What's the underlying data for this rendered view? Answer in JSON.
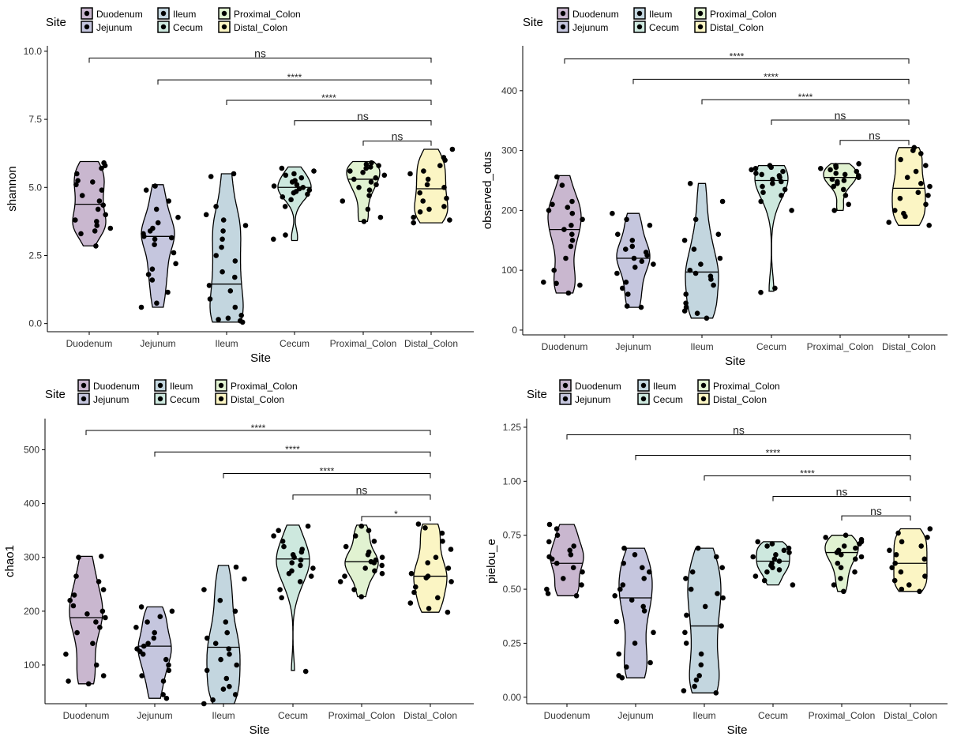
{
  "chart_data": [
    {
      "type": "violin",
      "ylabel": "shannon",
      "xlabel": "Site",
      "legend_title": "Site",
      "legend_position": "top-left",
      "categories": [
        "Duodenum",
        "Jejunum",
        "Ileum",
        "Cecum",
        "Proximal_Colon",
        "Distal_Colon"
      ],
      "legend_order": [
        "Duodenum",
        "Jejunum",
        "Ileum",
        "Cecum",
        "Proximal_Colon",
        "Distal_Colon"
      ],
      "colors": [
        "#c9b7cf",
        "#c5c6de",
        "#c3d6df",
        "#cde8de",
        "#e1f2d1",
        "#fbf5c4"
      ],
      "ylim": [
        -0.3,
        10.2
      ],
      "yticks": [
        0.0,
        2.5,
        5.0,
        7.5,
        10.0
      ],
      "ytick_labels": [
        "0.0",
        "2.5",
        "5.0",
        "7.5",
        "10.0"
      ],
      "series": [
        {
          "name": "Duodenum",
          "min": 2.85,
          "max": 5.95,
          "median": 4.38,
          "points": [
            2.85,
            3.3,
            3.4,
            3.5,
            3.6,
            3.75,
            3.8,
            4.0,
            4.2,
            4.35,
            4.5,
            4.7,
            4.9,
            5.1,
            5.2,
            5.25,
            5.5,
            5.7,
            5.8,
            5.9
          ]
        },
        {
          "name": "Jejunum",
          "min": 0.6,
          "max": 5.1,
          "median": 3.2,
          "points": [
            0.6,
            0.75,
            1.15,
            1.6,
            1.8,
            2.0,
            2.2,
            2.6,
            2.9,
            3.1,
            3.15,
            3.2,
            3.3,
            3.4,
            3.5,
            3.7,
            3.9,
            4.2,
            4.5,
            4.9,
            5.05
          ]
        },
        {
          "name": "Ileum",
          "min": 0.05,
          "max": 5.5,
          "median": 1.45,
          "points": [
            0.05,
            0.1,
            0.15,
            0.2,
            0.3,
            0.6,
            0.9,
            1.2,
            1.4,
            1.7,
            1.9,
            2.3,
            2.5,
            2.8,
            3.1,
            3.4,
            3.6,
            3.8,
            4.0,
            4.3,
            5.4,
            5.5
          ]
        },
        {
          "name": "Cecum",
          "min": 3.05,
          "max": 5.75,
          "median": 5.0,
          "points": [
            3.1,
            3.25,
            4.3,
            4.55,
            4.65,
            4.75,
            4.8,
            4.85,
            4.9,
            4.95,
            5.0,
            5.05,
            5.1,
            5.2,
            5.25,
            5.35,
            5.45,
            5.5,
            5.6,
            5.7
          ]
        },
        {
          "name": "Proximal_Colon",
          "min": 3.75,
          "max": 5.95,
          "median": 5.3,
          "points": [
            3.75,
            3.9,
            4.2,
            4.5,
            4.7,
            4.9,
            5.0,
            5.1,
            5.2,
            5.3,
            5.35,
            5.45,
            5.55,
            5.6,
            5.7,
            5.75,
            5.8,
            5.85,
            5.9
          ]
        },
        {
          "name": "Distal_Colon",
          "min": 3.7,
          "max": 6.4,
          "median": 4.95,
          "points": [
            3.7,
            3.8,
            3.9,
            4.1,
            4.2,
            4.3,
            4.5,
            4.6,
            4.8,
            5.0,
            5.1,
            5.3,
            5.5,
            5.6,
            5.8,
            6.0,
            6.1,
            6.4
          ]
        }
      ],
      "comparisons": [
        {
          "groups": [
            "Duodenum",
            "Distal_Colon"
          ],
          "y": 9.75,
          "label": "ns"
        },
        {
          "groups": [
            "Jejunum",
            "Distal_Colon"
          ],
          "y": 8.95,
          "label": "****"
        },
        {
          "groups": [
            "Ileum",
            "Distal_Colon"
          ],
          "y": 8.2,
          "label": "****"
        },
        {
          "groups": [
            "Cecum",
            "Distal_Colon"
          ],
          "y": 7.45,
          "label": "ns"
        },
        {
          "groups": [
            "Proximal_Colon",
            "Distal_Colon"
          ],
          "y": 6.7,
          "label": "ns"
        }
      ]
    },
    {
      "type": "violin",
      "ylabel": "observed_otus",
      "xlabel": "Site",
      "legend_title": "Site",
      "legend_position": "top-left",
      "categories": [
        "Duodenum",
        "Jejunum",
        "Ileum",
        "Cecum",
        "Proximal_Colon",
        "Distal_Colon"
      ],
      "legend_order": [
        "Duodenum",
        "Jejunum",
        "Ileum",
        "Cecum",
        "Proximal_Colon",
        "Distal_Colon"
      ],
      "colors": [
        "#c9b7cf",
        "#c5c6de",
        "#c3d6df",
        "#cde8de",
        "#e1f2d1",
        "#fbf5c4"
      ],
      "ylim": [
        -8,
        475
      ],
      "yticks": [
        0,
        100,
        200,
        300,
        400
      ],
      "ytick_labels": [
        "0",
        "100",
        "200",
        "300",
        "400"
      ],
      "series": [
        {
          "name": "Duodenum",
          "min": 62,
          "max": 258,
          "median": 168,
          "points": [
            62,
            75,
            78,
            80,
            100,
            120,
            140,
            150,
            160,
            168,
            175,
            185,
            195,
            200,
            205,
            210,
            215,
            242,
            256
          ]
        },
        {
          "name": "Jejunum",
          "min": 38,
          "max": 195,
          "median": 120,
          "points": [
            38,
            40,
            60,
            70,
            80,
            95,
            105,
            110,
            115,
            120,
            125,
            130,
            135,
            140,
            150,
            160,
            175,
            185,
            195
          ]
        },
        {
          "name": "Ileum",
          "min": 20,
          "max": 245,
          "median": 97,
          "points": [
            20,
            28,
            32,
            38,
            45,
            60,
            75,
            85,
            90,
            95,
            100,
            110,
            120,
            135,
            150,
            160,
            185,
            215,
            245
          ]
        },
        {
          "name": "Cecum",
          "min": 65,
          "max": 275,
          "median": 250,
          "points": [
            63,
            70,
            200,
            215,
            225,
            230,
            235,
            240,
            245,
            248,
            252,
            255,
            258,
            260,
            262,
            265,
            268,
            270,
            272,
            275
          ]
        },
        {
          "name": "Proximal_Colon",
          "min": 200,
          "max": 278,
          "median": 255,
          "points": [
            200,
            210,
            225,
            235,
            240,
            245,
            248,
            250,
            252,
            255,
            258,
            260,
            262,
            265,
            268,
            270,
            272,
            275,
            278
          ]
        },
        {
          "name": "Distal_Colon",
          "min": 175,
          "max": 305,
          "median": 237,
          "points": [
            175,
            180,
            190,
            195,
            200,
            210,
            220,
            225,
            230,
            240,
            245,
            255,
            265,
            275,
            285,
            295,
            300,
            305
          ]
        }
      ],
      "comparisons": [
        {
          "groups": [
            "Duodenum",
            "Distal_Colon"
          ],
          "y": 453,
          "label": "****"
        },
        {
          "groups": [
            "Jejunum",
            "Distal_Colon"
          ],
          "y": 419,
          "label": "****"
        },
        {
          "groups": [
            "Ileum",
            "Distal_Colon"
          ],
          "y": 385,
          "label": "****"
        },
        {
          "groups": [
            "Cecum",
            "Distal_Colon"
          ],
          "y": 351,
          "label": "ns"
        },
        {
          "groups": [
            "Proximal_Colon",
            "Distal_Colon"
          ],
          "y": 317,
          "label": "ns"
        }
      ]
    },
    {
      "type": "violin",
      "ylabel": "chao1",
      "xlabel": "Site",
      "legend_title": "Site",
      "legend_position": "top-left",
      "categories": [
        "Duodenum",
        "Jejunum",
        "Ileum",
        "Cecum",
        "Proximal_Colon",
        "Distal_Colon"
      ],
      "legend_order": [
        "Duodenum",
        "Jejunum",
        "Ileum",
        "Cecum",
        "Proximal_Colon",
        "Distal_Colon"
      ],
      "colors": [
        "#c9b7cf",
        "#c5c6de",
        "#c3d6df",
        "#cde8de",
        "#e1f2d1",
        "#fbf5c4"
      ],
      "ylim": [
        28,
        558
      ],
      "yticks": [
        100,
        200,
        300,
        400,
        500
      ],
      "ytick_labels": [
        "100",
        "200",
        "300",
        "400",
        "500"
      ],
      "series": [
        {
          "name": "Duodenum",
          "min": 65,
          "max": 302,
          "median": 188,
          "points": [
            65,
            70,
            80,
            100,
            120,
            140,
            160,
            170,
            180,
            188,
            195,
            200,
            210,
            220,
            230,
            240,
            255,
            265,
            300,
            302
          ]
        },
        {
          "name": "Jejunum",
          "min": 38,
          "max": 208,
          "median": 135,
          "points": [
            38,
            45,
            70,
            80,
            90,
            100,
            110,
            120,
            125,
            130,
            135,
            140,
            150,
            160,
            170,
            180,
            190,
            200,
            208
          ]
        },
        {
          "name": "Ileum",
          "min": 28,
          "max": 285,
          "median": 133,
          "points": [
            28,
            35,
            45,
            55,
            60,
            75,
            90,
            100,
            110,
            120,
            130,
            140,
            150,
            160,
            180,
            200,
            220,
            240,
            260,
            282
          ]
        },
        {
          "name": "Cecum",
          "min": 90,
          "max": 360,
          "median": 297,
          "points": [
            88,
            225,
            240,
            255,
            265,
            270,
            275,
            280,
            285,
            290,
            295,
            300,
            305,
            310,
            315,
            320,
            330,
            340,
            350,
            358
          ]
        },
        {
          "name": "Proximal_Colon",
          "min": 227,
          "max": 360,
          "median": 292,
          "points": [
            227,
            240,
            255,
            265,
            270,
            275,
            280,
            285,
            290,
            292,
            295,
            300,
            305,
            310,
            320,
            330,
            340,
            350,
            358
          ]
        },
        {
          "name": "Distal_Colon",
          "min": 198,
          "max": 362,
          "median": 265,
          "points": [
            198,
            205,
            215,
            225,
            235,
            245,
            255,
            262,
            265,
            270,
            280,
            290,
            300,
            315,
            330,
            345,
            355,
            362
          ]
        }
      ],
      "comparisons": [
        {
          "groups": [
            "Duodenum",
            "Distal_Colon"
          ],
          "y": 536,
          "label": "****"
        },
        {
          "groups": [
            "Jejunum",
            "Distal_Colon"
          ],
          "y": 496,
          "label": "****"
        },
        {
          "groups": [
            "Ileum",
            "Distal_Colon"
          ],
          "y": 456,
          "label": "****"
        },
        {
          "groups": [
            "Cecum",
            "Distal_Colon"
          ],
          "y": 416,
          "label": "ns"
        },
        {
          "groups": [
            "Proximal_Colon",
            "Distal_Colon"
          ],
          "y": 376,
          "label": "*"
        }
      ]
    },
    {
      "type": "violin",
      "ylabel": "pielou_e",
      "xlabel": "Site",
      "legend_title": "Site",
      "legend_position": "top-left",
      "categories": [
        "Duodenum",
        "Jejunum",
        "Ileum",
        "Cecum",
        "Proximal_Colon",
        "Distal_Colon"
      ],
      "legend_order": [
        "Duodenum",
        "Jejunum",
        "Ileum",
        "Cecum",
        "Proximal_Colon",
        "Distal_Colon"
      ],
      "colors": [
        "#c9b7cf",
        "#c5c6de",
        "#c3d6df",
        "#cde8de",
        "#e1f2d1",
        "#fbf5c4"
      ],
      "ylim": [
        -0.03,
        1.29
      ],
      "yticks": [
        0.0,
        0.25,
        0.5,
        0.75,
        1.0,
        1.25
      ],
      "ytick_labels": [
        "0.00",
        "0.25",
        "0.50",
        "0.75",
        "1.00",
        "1.25"
      ],
      "series": [
        {
          "name": "Duodenum",
          "min": 0.47,
          "max": 0.8,
          "median": 0.62,
          "points": [
            0.47,
            0.48,
            0.5,
            0.52,
            0.55,
            0.58,
            0.6,
            0.62,
            0.64,
            0.65,
            0.66,
            0.68,
            0.7,
            0.72,
            0.75,
            0.78,
            0.8
          ]
        },
        {
          "name": "Jejunum",
          "min": 0.09,
          "max": 0.69,
          "median": 0.46,
          "points": [
            0.09,
            0.1,
            0.14,
            0.16,
            0.2,
            0.25,
            0.3,
            0.35,
            0.4,
            0.42,
            0.45,
            0.47,
            0.5,
            0.52,
            0.55,
            0.58,
            0.6,
            0.62,
            0.66,
            0.69
          ]
        },
        {
          "name": "Ileum",
          "min": 0.02,
          "max": 0.69,
          "median": 0.33,
          "points": [
            0.02,
            0.03,
            0.05,
            0.08,
            0.1,
            0.15,
            0.2,
            0.25,
            0.3,
            0.33,
            0.38,
            0.42,
            0.46,
            0.48,
            0.5,
            0.55,
            0.58,
            0.6,
            0.65,
            0.69
          ]
        },
        {
          "name": "Cecum",
          "min": 0.52,
          "max": 0.72,
          "median": 0.63,
          "points": [
            0.52,
            0.54,
            0.56,
            0.58,
            0.59,
            0.6,
            0.61,
            0.62,
            0.63,
            0.64,
            0.65,
            0.66,
            0.67,
            0.68,
            0.69,
            0.7,
            0.71,
            0.72
          ]
        },
        {
          "name": "Proximal_Colon",
          "min": 0.49,
          "max": 0.75,
          "median": 0.67,
          "points": [
            0.49,
            0.52,
            0.55,
            0.58,
            0.6,
            0.62,
            0.64,
            0.65,
            0.66,
            0.67,
            0.68,
            0.69,
            0.7,
            0.71,
            0.72,
            0.73,
            0.74,
            0.75
          ]
        },
        {
          "name": "Distal_Colon",
          "min": 0.49,
          "max": 0.78,
          "median": 0.62,
          "points": [
            0.49,
            0.5,
            0.52,
            0.54,
            0.56,
            0.58,
            0.6,
            0.62,
            0.64,
            0.66,
            0.68,
            0.7,
            0.72,
            0.74,
            0.76,
            0.78
          ]
        }
      ],
      "comparisons": [
        {
          "groups": [
            "Duodenum",
            "Distal_Colon"
          ],
          "y": 1.215,
          "label": "ns"
        },
        {
          "groups": [
            "Jejunum",
            "Distal_Colon"
          ],
          "y": 1.12,
          "label": "****"
        },
        {
          "groups": [
            "Ileum",
            "Distal_Colon"
          ],
          "y": 1.025,
          "label": "****"
        },
        {
          "groups": [
            "Cecum",
            "Distal_Colon"
          ],
          "y": 0.93,
          "label": "ns"
        },
        {
          "groups": [
            "Proximal_Colon",
            "Distal_Colon"
          ],
          "y": 0.84,
          "label": "ns"
        }
      ]
    }
  ]
}
